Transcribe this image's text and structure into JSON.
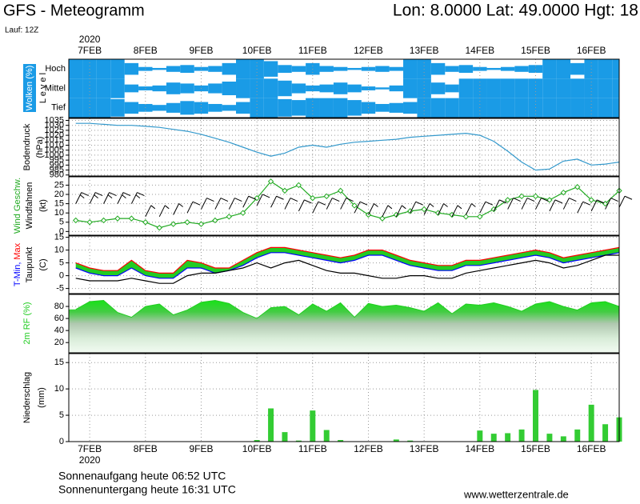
{
  "header": {
    "title": "GFS - Meteogramm",
    "location": "Lon: 8.0000 Lat: 49.0000 Hgt: 18",
    "run": "Lauf: 12Z"
  },
  "footer": {
    "sunrise": "Sonnenaufgang heute 06:52 UTC",
    "sunset": "Sonnenuntergang heute 16:31 UTC",
    "source": "www.wetterzentrale.de"
  },
  "chart_data": [
    {
      "type": "heatmap",
      "title": "Wolken (%)",
      "ylabel": "L e v e l",
      "xlabel": "2020",
      "categories": [
        "Hoch",
        "Mittel",
        "Tief"
      ],
      "x": [
        -6,
        0,
        6,
        12,
        18,
        24,
        30,
        36,
        42,
        48,
        54,
        60,
        66,
        72,
        78,
        84,
        90,
        96,
        102,
        108,
        114,
        120,
        126,
        132,
        138,
        144,
        150,
        156,
        162,
        168,
        174,
        180,
        186,
        192,
        198,
        204,
        210,
        216,
        222,
        228
      ],
      "xlim": [
        -9,
        228
      ],
      "xticks": [
        {
          "value": 0,
          "label": "7FEB"
        },
        {
          "value": 24,
          "label": "8FEB"
        },
        {
          "value": 48,
          "label": "9FEB"
        },
        {
          "value": 72,
          "label": "10FEB"
        },
        {
          "value": 96,
          "label": "11FEB"
        },
        {
          "value": 120,
          "label": "12FEB"
        },
        {
          "value": 144,
          "label": "13FEB"
        },
        {
          "value": 168,
          "label": "14FEB"
        },
        {
          "value": 192,
          "label": "15FEB"
        },
        {
          "value": 216,
          "label": "16FEB"
        }
      ],
      "vlim": [
        0,
        100
      ],
      "color": "#1a9be6",
      "grid": true,
      "series": [
        {
          "values": [
            100,
            100,
            100,
            100,
            60,
            20,
            10,
            30,
            40,
            20,
            30,
            60,
            100,
            100,
            80,
            40,
            30,
            60,
            30,
            20,
            10,
            20,
            30,
            20,
            100,
            100,
            60,
            30,
            40,
            20,
            10,
            20,
            30,
            40,
            100,
            100,
            60,
            100,
            100,
            100
          ]
        },
        {
          "values": [
            100,
            100,
            100,
            100,
            40,
            20,
            30,
            60,
            50,
            30,
            50,
            70,
            100,
            100,
            100,
            80,
            50,
            30,
            40,
            60,
            40,
            20,
            10,
            30,
            100,
            100,
            60,
            40,
            100,
            100,
            100,
            100,
            100,
            100,
            100,
            100,
            100,
            100,
            100,
            100
          ]
        },
        {
          "values": [
            100,
            100,
            100,
            90,
            60,
            40,
            30,
            50,
            70,
            60,
            40,
            30,
            60,
            100,
            100,
            90,
            80,
            100,
            100,
            100,
            80,
            60,
            40,
            50,
            60,
            100,
            100,
            100,
            100,
            100,
            100,
            100,
            100,
            100,
            100,
            100,
            100,
            100,
            100,
            100
          ]
        }
      ]
    },
    {
      "type": "line",
      "ylabel": "Bodendruck",
      "yunit": "(hPa)",
      "x": [
        -6,
        0,
        6,
        12,
        18,
        24,
        30,
        36,
        42,
        48,
        54,
        60,
        66,
        72,
        78,
        84,
        90,
        96,
        102,
        108,
        114,
        120,
        126,
        132,
        138,
        144,
        150,
        156,
        162,
        168,
        174,
        180,
        186,
        192,
        198,
        204,
        210,
        216,
        222,
        228
      ],
      "xlim": [
        -9,
        228
      ],
      "ylim": [
        979,
        1037
      ],
      "yticks": [
        980,
        985,
        990,
        995,
        1000,
        1005,
        1010,
        1015,
        1020,
        1025,
        1030,
        1035
      ],
      "grid": true,
      "color": "#3399cc",
      "values": [
        1032,
        1032,
        1031,
        1030,
        1030,
        1029,
        1028,
        1026,
        1024,
        1021,
        1017,
        1013,
        1008,
        1003,
        999,
        1002,
        1008,
        1010,
        1008,
        1011,
        1013,
        1014,
        1015,
        1016,
        1018,
        1019,
        1020,
        1021,
        1022,
        1020,
        1014,
        1004,
        993,
        985,
        986,
        994,
        996,
        990,
        991,
        993
      ]
    },
    {
      "type": "line",
      "yunit": "(kt)",
      "x": [
        -6,
        0,
        6,
        12,
        18,
        24,
        30,
        36,
        42,
        48,
        54,
        60,
        66,
        72,
        78,
        84,
        90,
        96,
        102,
        108,
        114,
        120,
        126,
        132,
        138,
        144,
        150,
        156,
        162,
        168,
        174,
        180,
        186,
        192,
        198,
        204,
        210,
        216,
        222,
        228
      ],
      "xlim": [
        -9,
        228
      ],
      "ylim": [
        -2,
        29.5
      ],
      "yticks": [
        0,
        5,
        10,
        15,
        20,
        25
      ],
      "grid": true,
      "series": [
        {
          "name": "Wind Geschw.",
          "color": "#22aa22",
          "marker": "diamond",
          "values": [
            6,
            5,
            6,
            7,
            7,
            5,
            2,
            4,
            5,
            4,
            6,
            8,
            10,
            18,
            27,
            22,
            25,
            18,
            19,
            22,
            14,
            9,
            7,
            9,
            11,
            12,
            10,
            9,
            8,
            8,
            12,
            17,
            19,
            19,
            17,
            21,
            24,
            17,
            15,
            22
          ]
        },
        {
          "name": "Windfahnen",
          "color": "#000000",
          "style": "barbs",
          "values": [
            15,
            15,
            15,
            15,
            15,
            8,
            8,
            9,
            10,
            12,
            12,
            12,
            13,
            14,
            13,
            12,
            11,
            10,
            12,
            12,
            10,
            9,
            8,
            8,
            10,
            9,
            9,
            8,
            9,
            10,
            11,
            12,
            12,
            12,
            11,
            12,
            10,
            11,
            12,
            13
          ]
        }
      ]
    },
    {
      "type": "line",
      "yunit": "(C)",
      "x": [
        -6,
        0,
        6,
        12,
        18,
        24,
        30,
        36,
        42,
        48,
        54,
        60,
        66,
        72,
        78,
        84,
        90,
        96,
        102,
        108,
        114,
        120,
        126,
        132,
        138,
        144,
        150,
        156,
        162,
        168,
        174,
        180,
        186,
        192,
        198,
        204,
        210,
        216,
        222,
        228
      ],
      "xlim": [
        -9,
        228
      ],
      "ylim": [
        -7,
        15.5
      ],
      "yticks": [
        -5,
        0,
        5,
        10,
        15
      ],
      "grid": true,
      "fill_between": [
        0,
        1
      ],
      "fill_color": "#22cc22",
      "series": [
        {
          "name": "T-Min,",
          "color": "#0000ff",
          "values": [
            3,
            1,
            0,
            0,
            3,
            0,
            -1,
            -1,
            3,
            3,
            1,
            2,
            4,
            7,
            9,
            9,
            8,
            7,
            6,
            5,
            6,
            8,
            8,
            6,
            4,
            3,
            2,
            2,
            4,
            4,
            5,
            6,
            7,
            8,
            7,
            5,
            6,
            7,
            8,
            9
          ]
        },
        {
          "name": "Max",
          "color": "#ff0000",
          "values": [
            5,
            3,
            2,
            2,
            6,
            2,
            1,
            1,
            6,
            5,
            3,
            3,
            6,
            9,
            11,
            11,
            10,
            9,
            8,
            7,
            8,
            10,
            10,
            8,
            6,
            5,
            4,
            4,
            6,
            6,
            7,
            8,
            9,
            10,
            9,
            7,
            8,
            9,
            10,
            11
          ]
        },
        {
          "name": "Taupunkt",
          "color": "#000000",
          "values": [
            -1,
            -2,
            -2,
            -2,
            -1,
            -2,
            -3,
            -3,
            0,
            1,
            1,
            2,
            3,
            5,
            3,
            5,
            6,
            4,
            2,
            1,
            1,
            0,
            -1,
            -1,
            0,
            0,
            -1,
            -1,
            1,
            2,
            3,
            4,
            5,
            6,
            5,
            3,
            4,
            6,
            8,
            8
          ]
        }
      ]
    },
    {
      "type": "area",
      "x": [
        -6,
        0,
        6,
        12,
        18,
        24,
        30,
        36,
        42,
        48,
        54,
        60,
        66,
        72,
        78,
        84,
        90,
        96,
        102,
        108,
        114,
        120,
        126,
        132,
        138,
        144,
        150,
        156,
        162,
        168,
        174,
        180,
        186,
        192,
        198,
        204,
        210,
        216,
        222,
        228
      ],
      "xlim": [
        -9,
        228
      ],
      "ylim": [
        3,
        100
      ],
      "yticks": [
        20,
        40,
        60,
        80
      ],
      "grid": true,
      "series": [
        {
          "name": "2m RF (%)",
          "color": "#22cc22",
          "values": [
            75,
            88,
            90,
            70,
            62,
            80,
            84,
            66,
            74,
            87,
            90,
            85,
            70,
            60,
            78,
            80,
            66,
            84,
            72,
            86,
            62,
            85,
            80,
            82,
            78,
            72,
            86,
            68,
            84,
            82,
            86,
            80,
            72,
            84,
            88,
            80,
            74,
            86,
            88,
            80
          ]
        }
      ]
    },
    {
      "type": "bar",
      "ylabel": "Niederschlag",
      "yunit": "(mm)",
      "xlabel": "2020",
      "x": [
        -6,
        0,
        6,
        12,
        18,
        24,
        30,
        36,
        42,
        48,
        54,
        60,
        66,
        72,
        78,
        84,
        90,
        96,
        102,
        108,
        114,
        120,
        126,
        132,
        138,
        144,
        150,
        156,
        162,
        168,
        174,
        180,
        186,
        192,
        198,
        204,
        210,
        216,
        222,
        228
      ],
      "xlim": [
        -9,
        228
      ],
      "xticks": [
        {
          "value": 0,
          "label": "7FEB"
        },
        {
          "value": 24,
          "label": "8FEB"
        },
        {
          "value": 48,
          "label": "9FEB"
        },
        {
          "value": 72,
          "label": "10FEB"
        },
        {
          "value": 96,
          "label": "11FEB"
        },
        {
          "value": 120,
          "label": "12FEB"
        },
        {
          "value": 144,
          "label": "13FEB"
        },
        {
          "value": 168,
          "label": "14FEB"
        },
        {
          "value": 192,
          "label": "15FEB"
        },
        {
          "value": 216,
          "label": "16FEB"
        }
      ],
      "ylim": [
        0,
        16.7
      ],
      "yticks": [
        0,
        5,
        10,
        15
      ],
      "grid": true,
      "color": "#33cc33",
      "values": [
        0,
        0,
        0,
        0,
        0,
        0,
        0,
        0,
        0,
        0,
        0,
        0,
        0,
        0.3,
        6.3,
        1.8,
        0.2,
        5.9,
        2.2,
        0.3,
        0,
        0,
        0,
        0.4,
        0.2,
        0,
        0,
        0,
        0,
        2.1,
        1.5,
        1.6,
        2.3,
        9.8,
        1.5,
        1.0,
        2.3,
        7.0,
        3.3,
        4.6
      ]
    }
  ]
}
